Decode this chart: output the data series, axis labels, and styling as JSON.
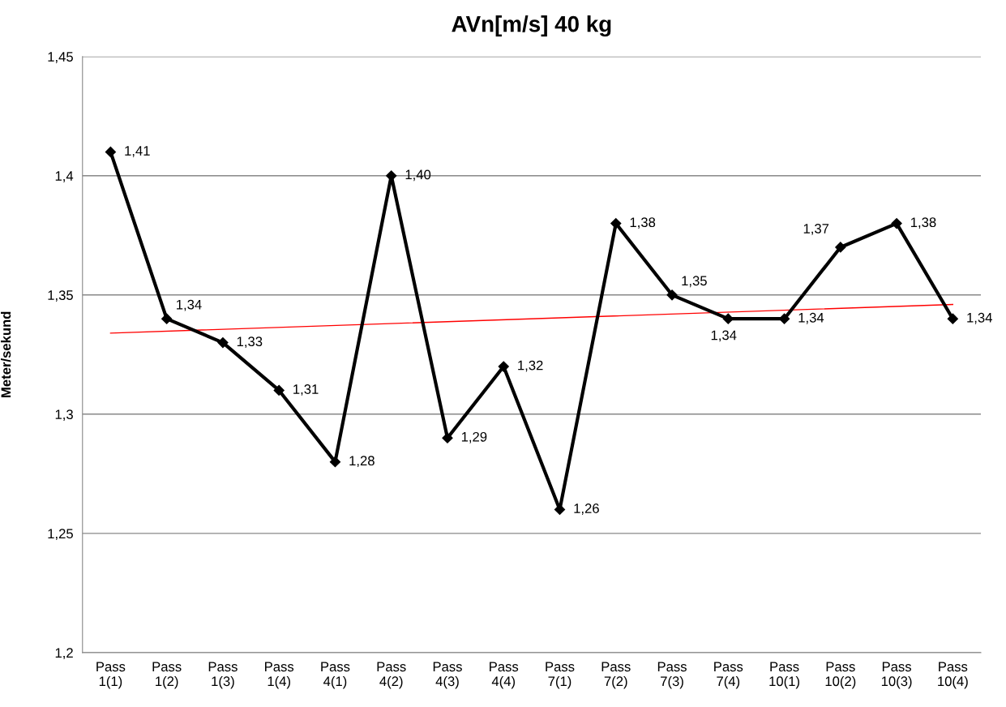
{
  "chart_data": {
    "type": "line",
    "title": "AVn[m/s] 40 kg",
    "ylabel": "Meter/sekund",
    "categories": [
      "Pass\n1(1)",
      "Pass\n1(2)",
      "Pass\n1(3)",
      "Pass\n1(4)",
      "Pass\n4(1)",
      "Pass\n4(2)",
      "Pass\n4(3)",
      "Pass\n4(4)",
      "Pass\n7(1)",
      "Pass\n7(2)",
      "Pass\n7(3)",
      "Pass\n7(4)",
      "Pass\n10(1)",
      "Pass\n10(2)",
      "Pass\n10(3)",
      "Pass\n10(4)"
    ],
    "series": [
      {
        "color": "#000000",
        "marker": "diamond",
        "line_style": "solid",
        "values": [
          1.41,
          1.34,
          1.33,
          1.31,
          1.28,
          1.4,
          1.29,
          1.32,
          1.26,
          1.38,
          1.35,
          1.34,
          1.34,
          1.37,
          1.38,
          1.34
        ],
        "value_labels": [
          "1,41",
          "1,34",
          "1,33",
          "1,31",
          "1,28",
          "1,40",
          "1,29",
          "1,32",
          "1,26",
          "1,38",
          "1,35",
          "1,34",
          "1,34",
          "1,37",
          "1,38",
          "1,34"
        ]
      },
      {
        "type": "line",
        "color": "#ff0000",
        "marker": "none",
        "line_style": "solid",
        "x": [
          "Pass\n1(1)",
          "Pass\n10(4)"
        ],
        "values": [
          1.334,
          1.346
        ]
      }
    ],
    "ylim": [
      1.2,
      1.45
    ],
    "yticks": [
      {
        "value": 1.2,
        "label": "1,2"
      },
      {
        "value": 1.25,
        "label": "1,25"
      },
      {
        "value": 1.3,
        "label": "1,3"
      },
      {
        "value": 1.35,
        "label": "1,35"
      },
      {
        "value": 1.4,
        "label": "1,4"
      },
      {
        "value": 1.45,
        "label": "1,45"
      }
    ],
    "grid": "y"
  }
}
